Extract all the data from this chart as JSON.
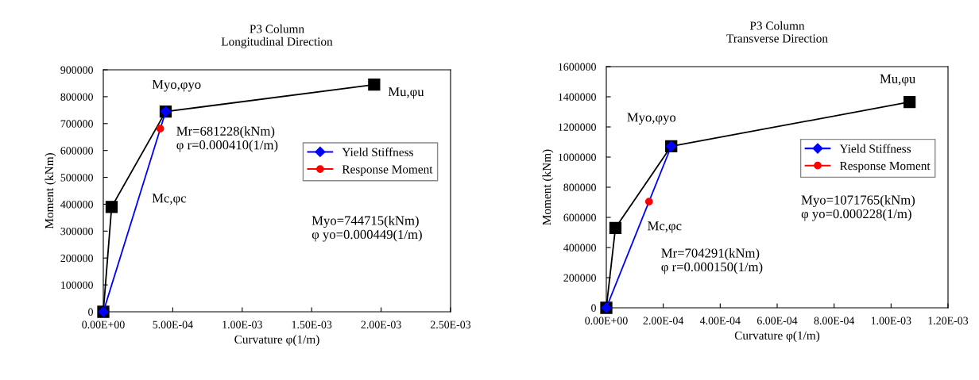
{
  "chart_data": [
    {
      "type": "line",
      "title": "P3 Column\nLongitudinal Direction",
      "xlabel": "Curvature φ(1/m)",
      "ylabel": "Moment (kNm)",
      "xlim": [
        0,
        0.0025
      ],
      "xticks": [
        {
          "value": 0,
          "label": "0.00E+00"
        },
        {
          "value": 0.0005,
          "label": "5.00E-04"
        },
        {
          "value": 0.001,
          "label": "1.00E-03"
        },
        {
          "value": 0.0015,
          "label": "1.50E-03"
        },
        {
          "value": 0.002,
          "label": "2.00E-03"
        },
        {
          "value": 0.0025,
          "label": "2.50E-03"
        }
      ],
      "ylim": [
        0,
        900000
      ],
      "yticks": [
        0,
        100000,
        200000,
        300000,
        400000,
        500000,
        600000,
        700000,
        800000,
        900000
      ],
      "legend": "right",
      "grid": false,
      "series": [
        {
          "color": "#000000",
          "marker": "square",
          "x": [
            0,
            6e-05,
            0.000449,
            0.00195
          ],
          "values": [
            0,
            390000,
            744715,
            845000
          ]
        },
        {
          "name": "Yield Stiffness",
          "color": "#0000ff",
          "marker": "diamond",
          "x": [
            0,
            0.000449
          ],
          "values": [
            0,
            744715
          ]
        },
        {
          "name": "Response Moment",
          "color": "#ff0000",
          "marker": "circle",
          "x": [
            0.00041
          ],
          "values": [
            681228
          ]
        }
      ],
      "annotations": [
        "Mc,φc",
        "Myo,φyo",
        "Mu,φu",
        "Mr=681228(kNm)\nφ r=0.000410(1/m)",
        "Myo=744715(kNm)\nφ yo=0.000449(1/m)"
      ]
    },
    {
      "type": "line",
      "title": "P3 Column\nTransverse Direction",
      "xlabel": "Curvature φ(1/m)",
      "ylabel": "Moment (kNm)",
      "xlim": [
        0,
        0.0012
      ],
      "xticks": [
        {
          "value": 0,
          "label": "0.00E+00"
        },
        {
          "value": 0.0002,
          "label": "2.00E-04"
        },
        {
          "value": 0.0004,
          "label": "4.00E-04"
        },
        {
          "value": 0.0006,
          "label": "6.00E-04"
        },
        {
          "value": 0.0008,
          "label": "8.00E-04"
        },
        {
          "value": 0.001,
          "label": "1.00E-03"
        },
        {
          "value": 0.0012,
          "label": "1.20E-03"
        }
      ],
      "ylim": [
        0,
        1600000
      ],
      "yticks": [
        0,
        200000,
        400000,
        600000,
        800000,
        1000000,
        1200000,
        1400000,
        1600000
      ],
      "legend": "right",
      "grid": false,
      "series": [
        {
          "color": "#000000",
          "marker": "square",
          "x": [
            0,
            3.2e-05,
            0.000228,
            0.001065
          ],
          "values": [
            0,
            530000,
            1071765,
            1365000
          ]
        },
        {
          "name": "Yield Stiffness",
          "color": "#0000ff",
          "marker": "diamond",
          "x": [
            0,
            0.000228
          ],
          "values": [
            0,
            1071765
          ]
        },
        {
          "name": "Response Moment",
          "color": "#ff0000",
          "marker": "circle",
          "x": [
            0.00015
          ],
          "values": [
            704291
          ]
        }
      ],
      "annotations": [
        "Mc,φc",
        "Myo,φyo",
        "Mu,φu",
        "Mr=704291(kNm)\nφ r=0.000150(1/m)",
        "Myo=1071765(kNm)\nφ yo=0.000228(1/m)"
      ]
    }
  ]
}
